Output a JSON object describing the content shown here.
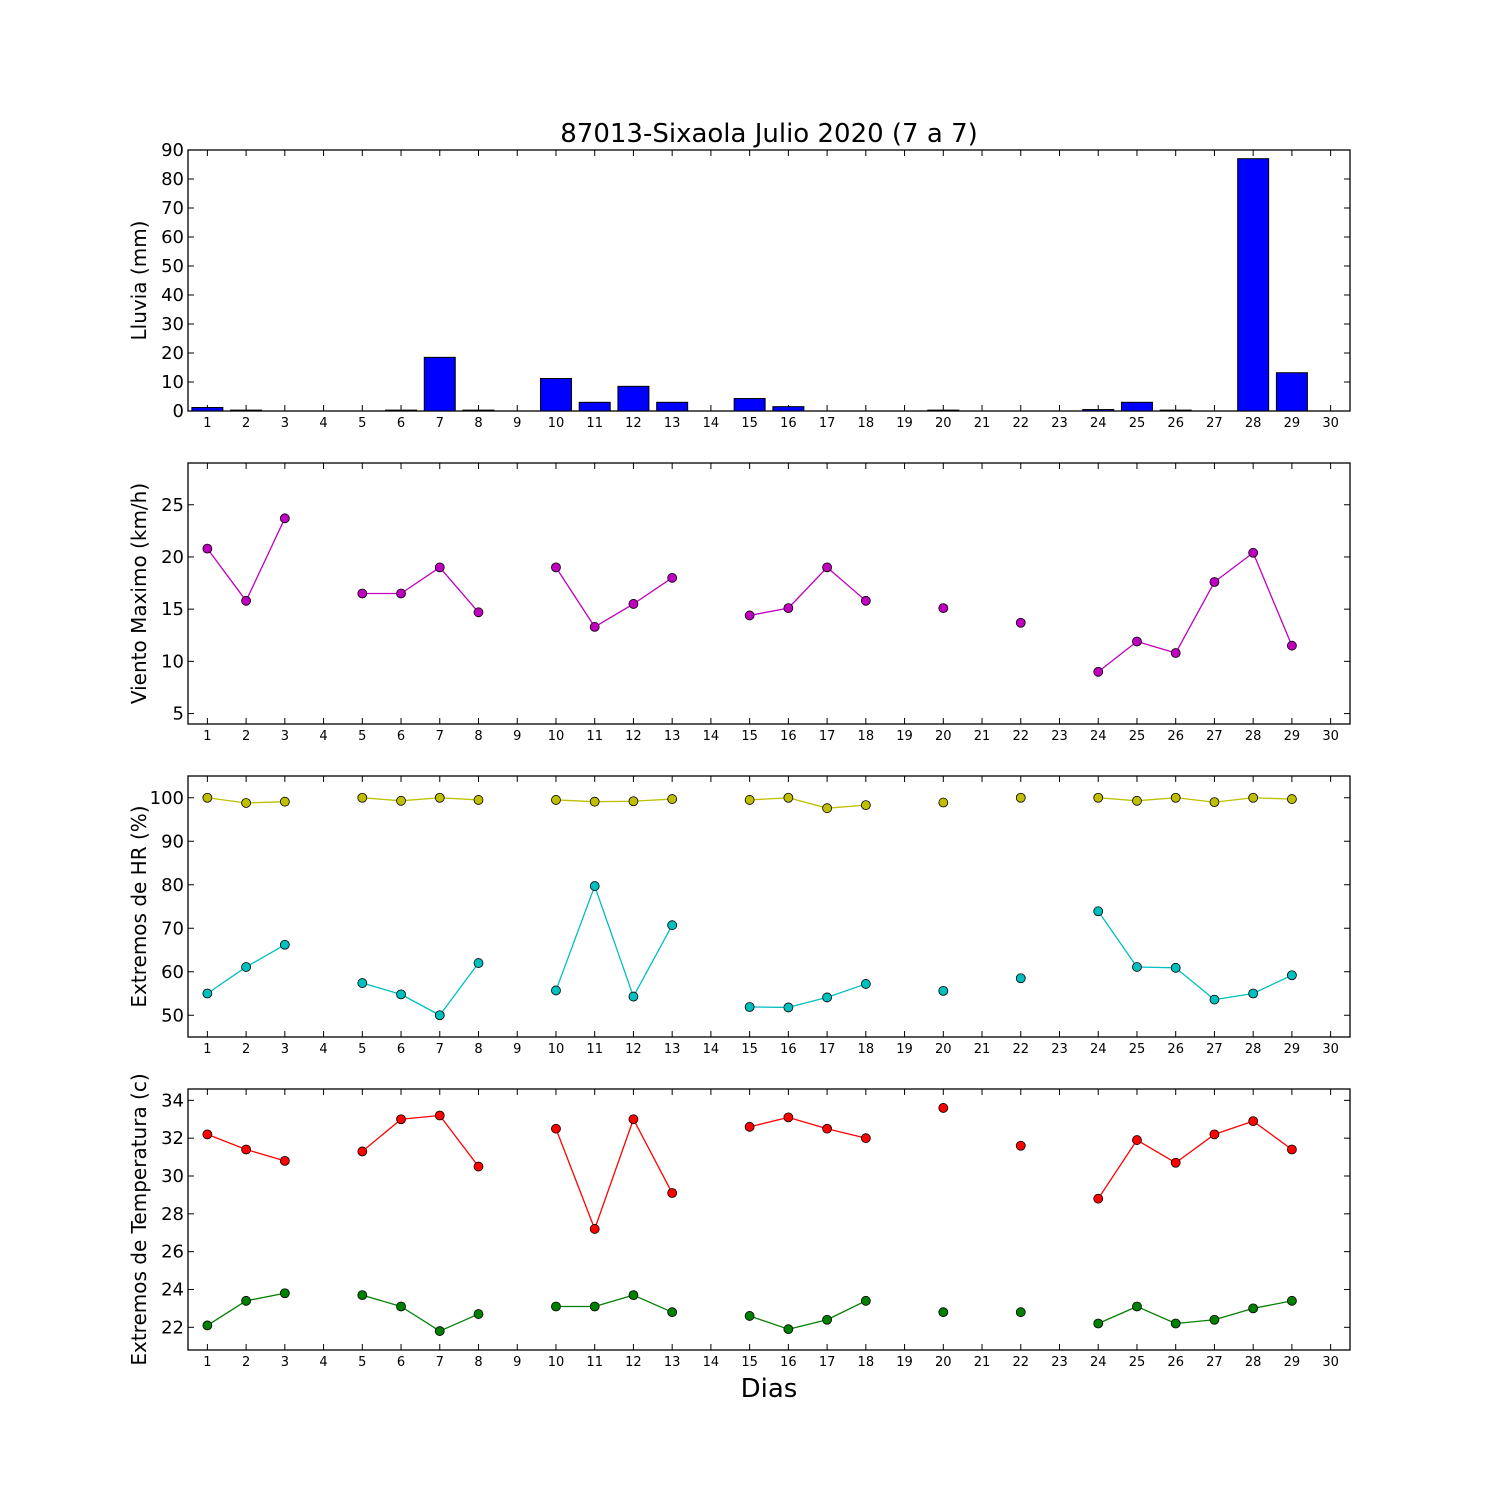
{
  "title": "87013-Sixaola Julio 2020  (7 a 7)",
  "xlabel": "Dias",
  "chart_data": [
    {
      "type": "bar",
      "ylabel": "Lluvia (mm)",
      "categories": [
        1,
        2,
        3,
        4,
        5,
        6,
        7,
        8,
        9,
        10,
        11,
        12,
        13,
        14,
        15,
        16,
        17,
        18,
        19,
        20,
        21,
        22,
        23,
        24,
        25,
        26,
        27,
        28,
        29,
        30
      ],
      "x_ticks": [
        1,
        2,
        3,
        4,
        5,
        6,
        7,
        8,
        9,
        10,
        11,
        12,
        13,
        14,
        15,
        16,
        17,
        18,
        19,
        20,
        21,
        22,
        23,
        24,
        25,
        26,
        27,
        28,
        29,
        30
      ],
      "ylim": [
        0,
        90
      ],
      "y_ticks": [
        0,
        10,
        20,
        30,
        40,
        50,
        60,
        70,
        80,
        90
      ],
      "series": [
        {
          "color": "#0000ff",
          "values": [
            1.2,
            0.3,
            0,
            0,
            0,
            0.3,
            18.5,
            0.3,
            0,
            11.2,
            3.0,
            8.5,
            3.0,
            0,
            4.3,
            1.5,
            0,
            0,
            0,
            0.3,
            0,
            0,
            0,
            0.5,
            3.0,
            0.3,
            0,
            87.0,
            13.2,
            null
          ]
        }
      ]
    },
    {
      "type": "line",
      "ylabel": "Viento Maximo (km/h)",
      "ylim": [
        4,
        29
      ],
      "y_ticks": [
        5,
        10,
        15,
        20,
        25
      ],
      "x_ticks": [
        1,
        2,
        3,
        4,
        5,
        6,
        7,
        8,
        9,
        10,
        11,
        12,
        13,
        14,
        15,
        16,
        17,
        18,
        19,
        20,
        21,
        22,
        23,
        24,
        25,
        26,
        27,
        28,
        29,
        30
      ],
      "series": [
        {
          "color": "#bf00bf",
          "x": [
            1,
            2,
            3,
            4,
            5,
            6,
            7,
            8,
            9,
            10,
            11,
            12,
            13,
            14,
            15,
            16,
            17,
            18,
            19,
            20,
            21,
            22,
            23,
            24,
            25,
            26,
            27,
            28,
            29,
            30
          ],
          "values": [
            20.8,
            15.8,
            23.7,
            null,
            16.5,
            16.5,
            19.0,
            14.7,
            null,
            19.0,
            13.3,
            15.5,
            18.0,
            null,
            14.4,
            15.1,
            19.0,
            15.8,
            null,
            15.1,
            null,
            13.7,
            null,
            9.0,
            11.9,
            10.8,
            17.6,
            20.4,
            11.5,
            null
          ]
        }
      ]
    },
    {
      "type": "line",
      "ylabel": "Extremos de HR (%)",
      "ylim": [
        45,
        105
      ],
      "y_ticks": [
        50,
        60,
        70,
        80,
        90,
        100
      ],
      "x_ticks": [
        1,
        2,
        3,
        4,
        5,
        6,
        7,
        8,
        9,
        10,
        11,
        12,
        13,
        14,
        15,
        16,
        17,
        18,
        19,
        20,
        21,
        22,
        23,
        24,
        25,
        26,
        27,
        28,
        29,
        30
      ],
      "series": [
        {
          "color": "#bfbf00",
          "x": [
            1,
            2,
            3,
            4,
            5,
            6,
            7,
            8,
            9,
            10,
            11,
            12,
            13,
            14,
            15,
            16,
            17,
            18,
            19,
            20,
            21,
            22,
            23,
            24,
            25,
            26,
            27,
            28,
            29,
            30
          ],
          "values": [
            100,
            98.8,
            99.1,
            null,
            100,
            99.3,
            100,
            99.5,
            null,
            99.5,
            99.1,
            99.2,
            99.7,
            null,
            99.5,
            100,
            97.6,
            98.3,
            null,
            98.9,
            null,
            100,
            null,
            100,
            99.3,
            100,
            99.0,
            100,
            99.7,
            null
          ]
        },
        {
          "color": "#00bfbf",
          "x": [
            1,
            2,
            3,
            4,
            5,
            6,
            7,
            8,
            9,
            10,
            11,
            12,
            13,
            14,
            15,
            16,
            17,
            18,
            19,
            20,
            21,
            22,
            23,
            24,
            25,
            26,
            27,
            28,
            29,
            30
          ],
          "values": [
            55.0,
            61.1,
            66.2,
            null,
            57.4,
            54.8,
            50.0,
            62.0,
            null,
            55.7,
            79.7,
            54.3,
            70.7,
            null,
            51.9,
            51.8,
            54.1,
            57.2,
            null,
            55.6,
            null,
            58.5,
            null,
            73.9,
            61.1,
            60.9,
            53.6,
            55.0,
            59.2,
            null
          ]
        }
      ]
    },
    {
      "type": "line",
      "ylabel": "Extremos de Temperatura (c)",
      "ylim": [
        20.8,
        34.6
      ],
      "y_ticks": [
        22,
        24,
        26,
        28,
        30,
        32,
        34
      ],
      "x_ticks": [
        1,
        2,
        3,
        4,
        5,
        6,
        7,
        8,
        9,
        10,
        11,
        12,
        13,
        14,
        15,
        16,
        17,
        18,
        19,
        20,
        21,
        22,
        23,
        24,
        25,
        26,
        27,
        28,
        29,
        30
      ],
      "series": [
        {
          "color": "#ff0000",
          "x": [
            1,
            2,
            3,
            4,
            5,
            6,
            7,
            8,
            9,
            10,
            11,
            12,
            13,
            14,
            15,
            16,
            17,
            18,
            19,
            20,
            21,
            22,
            23,
            24,
            25,
            26,
            27,
            28,
            29,
            30
          ],
          "values": [
            32.2,
            31.4,
            30.8,
            null,
            31.3,
            33.0,
            33.2,
            30.5,
            null,
            32.5,
            27.2,
            33.0,
            29.1,
            null,
            32.6,
            33.1,
            32.5,
            32.0,
            null,
            33.6,
            null,
            31.6,
            null,
            28.8,
            31.9,
            30.7,
            32.2,
            32.9,
            31.4,
            null
          ]
        },
        {
          "color": "#008000",
          "x": [
            1,
            2,
            3,
            4,
            5,
            6,
            7,
            8,
            9,
            10,
            11,
            12,
            13,
            14,
            15,
            16,
            17,
            18,
            19,
            20,
            21,
            22,
            23,
            24,
            25,
            26,
            27,
            28,
            29,
            30
          ],
          "values": [
            22.1,
            23.4,
            23.8,
            null,
            23.7,
            23.1,
            21.8,
            22.7,
            null,
            23.1,
            23.1,
            23.7,
            22.8,
            null,
            22.6,
            21.9,
            22.4,
            23.4,
            null,
            22.8,
            null,
            22.8,
            null,
            22.2,
            23.1,
            22.2,
            22.4,
            23.0,
            23.4,
            null
          ]
        }
      ]
    }
  ]
}
